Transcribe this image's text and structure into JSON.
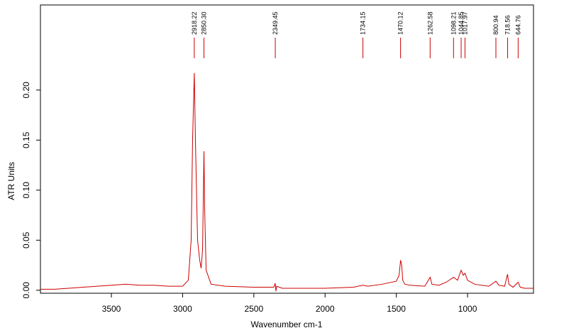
{
  "chart_data": {
    "type": "line",
    "xlabel": "Wavenumber cm-1",
    "ylabel": "ATR Units",
    "xlim": [
      3998,
      537
    ],
    "ylim": [
      -0.003,
      0.285
    ],
    "xticks": [
      3500,
      3000,
      2500,
      2000,
      1500,
      1000
    ],
    "yticks": [
      {
        "value": 0,
        "label": "0.00"
      },
      {
        "value": 0.05,
        "label": "0.05"
      },
      {
        "value": 0.1,
        "label": "0.10"
      },
      {
        "value": 0.15,
        "label": "0.15"
      },
      {
        "value": 0.2,
        "label": "0.20"
      }
    ],
    "peaks": [
      {
        "value": 2918.22,
        "label": "2918.22"
      },
      {
        "value": 2850.3,
        "label": "2850.30"
      },
      {
        "value": 2349.45,
        "label": "2349.45"
      },
      {
        "value": 1734.15,
        "label": "1734.15"
      },
      {
        "value": 1470.12,
        "label": "1470.12"
      },
      {
        "value": 1262.58,
        "label": "1262.58"
      },
      {
        "value": 1098.21,
        "label": "1098.21"
      },
      {
        "value": 1044.85,
        "label": "1044.85"
      },
      {
        "value": 1017.97,
        "label": "1017.97"
      },
      {
        "value": 800.94,
        "label": "800.94"
      },
      {
        "value": 718.56,
        "label": "718.56"
      },
      {
        "value": 644.76,
        "label": "644.76"
      }
    ],
    "series": [
      {
        "color": "#cc0000",
        "x": [
          3998,
          3900,
          3800,
          3700,
          3600,
          3500,
          3400,
          3300,
          3200,
          3100,
          3000,
          2960,
          2940,
          2930,
          2918,
          2910,
          2895,
          2880,
          2870,
          2860,
          2850,
          2845,
          2835,
          2800,
          2700,
          2500,
          2360,
          2350,
          2345,
          2340,
          2300,
          2000,
          1800,
          1734,
          1700,
          1600,
          1500,
          1480,
          1470,
          1462,
          1455,
          1440,
          1400,
          1300,
          1262,
          1250,
          1200,
          1150,
          1098,
          1070,
          1045,
          1030,
          1018,
          1000,
          950,
          850,
          801,
          780,
          740,
          719,
          710,
          680,
          645,
          630,
          600,
          537
        ],
        "values": [
          0.001,
          0.001,
          0.002,
          0.003,
          0.004,
          0.005,
          0.006,
          0.005,
          0.005,
          0.004,
          0.004,
          0.01,
          0.05,
          0.15,
          0.217,
          0.15,
          0.05,
          0.03,
          0.022,
          0.04,
          0.139,
          0.08,
          0.02,
          0.006,
          0.004,
          0.003,
          0.003,
          0.007,
          -0.001,
          0.004,
          0.002,
          0.002,
          0.003,
          0.005,
          0.004,
          0.006,
          0.009,
          0.015,
          0.03,
          0.025,
          0.01,
          0.006,
          0.005,
          0.004,
          0.013,
          0.006,
          0.005,
          0.008,
          0.013,
          0.01,
          0.02,
          0.015,
          0.017,
          0.01,
          0.006,
          0.004,
          0.009,
          0.005,
          0.004,
          0.016,
          0.006,
          0.003,
          0.008,
          0.003,
          0.002,
          0.002
        ]
      }
    ]
  }
}
